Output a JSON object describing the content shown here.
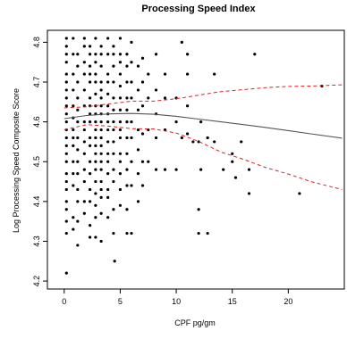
{
  "chart_data": {
    "type": "scatter",
    "title": "Processing Speed Index",
    "xlabel": "CPF pg/gm",
    "ylabel": "Log Processing Speed Composite Score",
    "xlim": [
      -1.5,
      25
    ],
    "ylim": [
      4.18,
      4.83
    ],
    "x_ticks": [
      0,
      5,
      10,
      15,
      20
    ],
    "y_ticks": [
      4.2,
      4.3,
      4.4,
      4.5,
      4.6,
      4.7,
      4.8
    ],
    "grid": false,
    "legend": "none",
    "colors": {
      "points": "#000000",
      "fit": "#555555",
      "ci": "#dd2222"
    },
    "points": {
      "x": [
        0.2,
        0.2,
        0.2,
        0.2,
        0.2,
        0.2,
        0.2,
        0.2,
        0.2,
        0.2,
        0.2,
        0.2,
        0.2,
        0.2,
        0.2,
        0.2,
        0.2,
        0.2,
        0.2,
        0.2,
        0.2,
        0.2,
        0.2,
        0.2,
        0.8,
        0.8,
        0.8,
        0.8,
        0.8,
        0.8,
        0.8,
        0.8,
        0.8,
        0.8,
        0.8,
        0.8,
        0.8,
        0.8,
        1.2,
        1.2,
        1.2,
        1.2,
        1.2,
        1.2,
        1.2,
        1.2,
        1.2,
        1.2,
        1.2,
        1.2,
        1.2,
        1.2,
        1.8,
        1.8,
        1.8,
        1.8,
        1.8,
        1.8,
        1.8,
        1.8,
        1.8,
        1.8,
        1.8,
        1.8,
        1.8,
        1.8,
        2.3,
        2.3,
        2.3,
        2.3,
        2.3,
        2.3,
        2.3,
        2.3,
        2.3,
        2.3,
        2.3,
        2.3,
        2.3,
        2.3,
        2.3,
        2.3,
        2.3,
        2.8,
        2.8,
        2.8,
        2.8,
        2.8,
        2.8,
        2.8,
        2.8,
        2.8,
        2.8,
        2.8,
        2.8,
        2.8,
        2.8,
        2.8,
        2.8,
        2.8,
        2.8,
        2.8,
        2.8,
        3.3,
        3.3,
        3.3,
        3.3,
        3.3,
        3.3,
        3.3,
        3.3,
        3.3,
        3.3,
        3.3,
        3.3,
        3.3,
        3.3,
        3.3,
        3.3,
        3.3,
        3.3,
        3.3,
        3.3,
        3.9,
        3.9,
        3.9,
        3.9,
        3.9,
        3.9,
        3.9,
        3.9,
        3.9,
        3.9,
        3.9,
        3.9,
        3.9,
        3.9,
        3.9,
        3.9,
        4.4,
        4.4,
        4.4,
        4.4,
        4.4,
        4.4,
        4.4,
        4.4,
        4.4,
        4.4,
        4.4,
        4.4,
        4.4,
        4.4,
        5.0,
        5.0,
        5.0,
        5.0,
        5.0,
        5.0,
        5.0,
        5.0,
        5.0,
        5.0,
        5.0,
        5.0,
        5.0,
        5.0,
        5.0,
        5.6,
        5.6,
        5.6,
        5.6,
        5.6,
        5.6,
        5.6,
        5.6,
        5.6,
        5.6,
        5.6,
        5.6,
        6.0,
        6.0,
        6.0,
        6.0,
        6.0,
        6.0,
        6.0,
        6.0,
        6.0,
        6.6,
        6.6,
        6.6,
        6.6,
        6.6,
        6.6,
        6.6,
        7.0,
        7.0,
        7.0,
        7.0,
        7.0,
        7.0,
        7.5,
        7.5,
        7.5,
        7.5,
        8.2,
        8.2,
        8.2,
        8.2,
        8.2,
        9.0,
        9.0,
        9.0,
        9.0,
        10.0,
        10.0,
        10.0,
        10.5,
        10.5,
        11.0,
        11.0,
        11.0,
        11.0,
        11.5,
        12.0,
        12.0,
        12.0,
        12.2,
        12.2,
        12.8,
        12.8,
        13.4,
        13.4,
        14.2,
        15.0,
        15.0,
        15.3,
        15.8,
        16.5,
        16.5,
        17.0,
        21.0,
        23.0,
        4.5
      ],
      "y": [
        4.81,
        4.79,
        4.77,
        4.75,
        4.72,
        4.7,
        4.68,
        4.66,
        4.64,
        4.62,
        4.6,
        4.58,
        4.56,
        4.54,
        4.52,
        4.5,
        4.47,
        4.45,
        4.43,
        4.4,
        4.38,
        4.35,
        4.32,
        4.22,
        4.81,
        4.77,
        4.72,
        4.68,
        4.64,
        4.61,
        4.58,
        4.56,
        4.54,
        4.5,
        4.47,
        4.44,
        4.36,
        4.33,
        4.77,
        4.74,
        4.7,
        4.66,
        4.63,
        4.6,
        4.56,
        4.53,
        4.5,
        4.47,
        4.43,
        4.4,
        4.35,
        4.29,
        4.81,
        4.79,
        4.75,
        4.72,
        4.68,
        4.64,
        4.6,
        4.58,
        4.55,
        4.52,
        4.48,
        4.45,
        4.4,
        4.37,
        4.79,
        4.77,
        4.74,
        4.72,
        4.7,
        4.66,
        4.64,
        4.62,
        4.6,
        4.56,
        4.54,
        4.5,
        4.47,
        4.43,
        4.4,
        4.34,
        4.31,
        4.81,
        4.77,
        4.75,
        4.72,
        4.7,
        4.67,
        4.64,
        4.62,
        4.6,
        4.58,
        4.56,
        4.54,
        4.52,
        4.5,
        4.48,
        4.45,
        4.42,
        4.39,
        4.36,
        4.31,
        4.79,
        4.77,
        4.74,
        4.7,
        4.68,
        4.66,
        4.64,
        4.62,
        4.6,
        4.58,
        4.56,
        4.54,
        4.52,
        4.5,
        4.48,
        4.45,
        4.43,
        4.41,
        4.37,
        4.3,
        4.81,
        4.77,
        4.72,
        4.7,
        4.67,
        4.64,
        4.62,
        4.6,
        4.58,
        4.55,
        4.52,
        4.5,
        4.47,
        4.43,
        4.41,
        4.36,
        4.79,
        4.77,
        4.74,
        4.7,
        4.66,
        4.63,
        4.6,
        4.58,
        4.55,
        4.52,
        4.48,
        4.45,
        4.38,
        4.32,
        4.81,
        4.77,
        4.75,
        4.72,
        4.69,
        4.66,
        4.63,
        4.6,
        4.58,
        4.56,
        4.52,
        4.5,
        4.47,
        4.43,
        4.39,
        4.77,
        4.74,
        4.7,
        4.66,
        4.63,
        4.6,
        4.56,
        4.52,
        4.48,
        4.44,
        4.38,
        4.32,
        4.8,
        4.75,
        4.7,
        4.66,
        4.6,
        4.56,
        4.5,
        4.44,
        4.32,
        4.74,
        4.68,
        4.63,
        4.58,
        4.53,
        4.47,
        4.4,
        4.76,
        4.7,
        4.64,
        4.57,
        4.5,
        4.44,
        4.72,
        4.66,
        4.58,
        4.5,
        4.77,
        4.68,
        4.62,
        4.56,
        4.48,
        4.72,
        4.66,
        4.58,
        4.48,
        4.66,
        4.6,
        4.48,
        4.8,
        4.56,
        4.77,
        4.72,
        4.64,
        4.57,
        4.55,
        4.55,
        4.38,
        4.32,
        4.6,
        4.48,
        4.56,
        4.32,
        4.72,
        4.55,
        4.48,
        4.52,
        4.5,
        4.46,
        4.55,
        4.48,
        4.42,
        4.77,
        4.42,
        4.69,
        4.25
      ]
    },
    "fit_line": {
      "x": [
        0,
        2,
        4,
        6,
        8,
        10,
        12,
        14,
        16,
        18,
        20,
        22,
        24.8
      ],
      "y": [
        4.608,
        4.616,
        4.62,
        4.621,
        4.619,
        4.614,
        4.607,
        4.6,
        4.593,
        4.586,
        4.578,
        4.57,
        4.559
      ]
    },
    "ci_upper": {
      "x": [
        0,
        2,
        4,
        6,
        8,
        10,
        12,
        14,
        16,
        18,
        20,
        22,
        24.8
      ],
      "y": [
        4.635,
        4.638,
        4.645,
        4.652,
        4.652,
        4.658,
        4.667,
        4.676,
        4.681,
        4.686,
        4.689,
        4.69,
        4.693
      ]
    },
    "ci_lower": {
      "x": [
        0,
        2,
        4,
        6,
        8,
        10,
        12,
        14,
        16,
        18,
        20,
        22,
        24.8
      ],
      "y": [
        4.58,
        4.593,
        4.589,
        4.583,
        4.582,
        4.572,
        4.551,
        4.524,
        4.506,
        4.485,
        4.469,
        4.45,
        4.43
      ]
    }
  }
}
